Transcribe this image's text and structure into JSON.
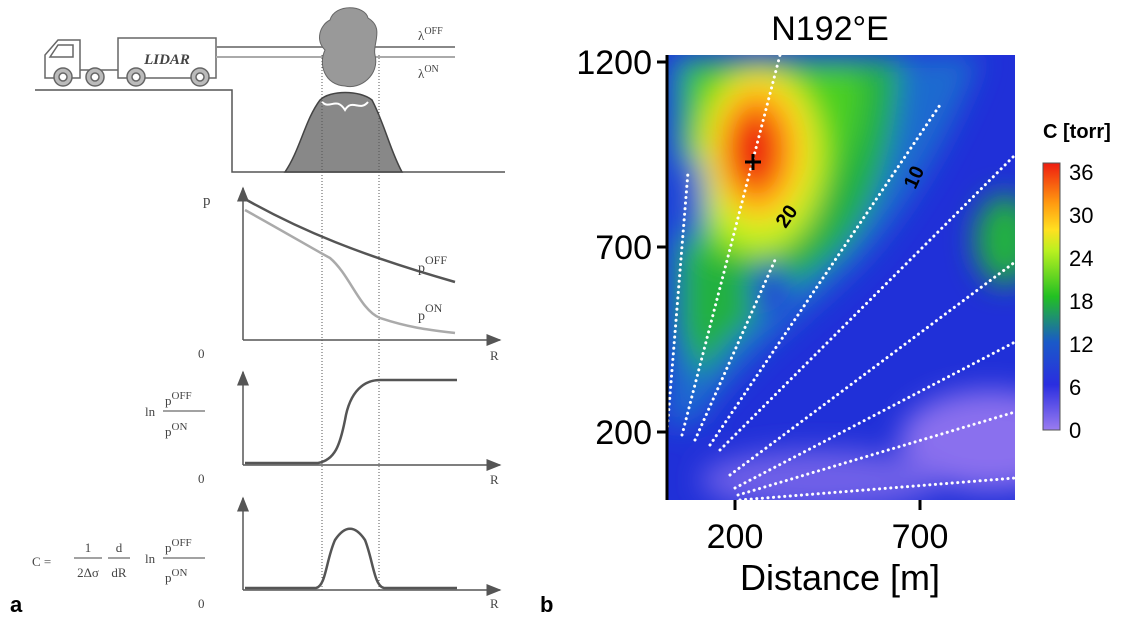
{
  "panel_a": {
    "label": "a",
    "truck_label": "LIDAR",
    "beam_off": {
      "symbol": "λ",
      "sup": "OFF"
    },
    "beam_on": {
      "symbol": "λ",
      "sup": "ON"
    },
    "plot1": {
      "y_label": "p",
      "origin": "0",
      "x_label": "R",
      "curve_off": {
        "symbol": "p",
        "sup": "OFF"
      },
      "curve_on": {
        "symbol": "p",
        "sup": "ON"
      }
    },
    "plot2": {
      "ln": "ln",
      "num": {
        "symbol": "p",
        "sup": "OFF"
      },
      "den": {
        "symbol": "p",
        "sup": "ON"
      },
      "origin": "0",
      "x_label": "R"
    },
    "plot3": {
      "lhs": "C =",
      "frac1_num": "1",
      "frac1_den": "2Δσ",
      "frac2_num": "d",
      "frac2_den": "dR",
      "ln": "ln",
      "num": {
        "symbol": "p",
        "sup": "OFF"
      },
      "den": {
        "symbol": "p",
        "sup": "ON"
      },
      "origin": "0",
      "x_label": "R"
    }
  },
  "panel_b": {
    "label": "b",
    "title": "N192°E",
    "x_label": "Distance [m]",
    "x_ticks": [
      200,
      700
    ],
    "y_ticks": [
      1200,
      700,
      200
    ],
    "colorbar": {
      "title": "C [torr]",
      "ticks": [
        36,
        30,
        24,
        18,
        12,
        6,
        0
      ]
    },
    "contour_labels": [
      20,
      10
    ]
  }
}
